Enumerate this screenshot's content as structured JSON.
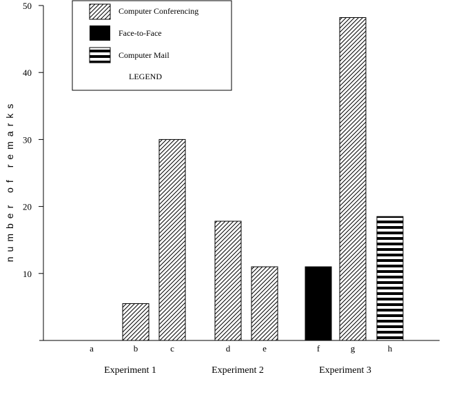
{
  "chart_data": {
    "type": "bar",
    "title": "",
    "xlabel": "",
    "ylabel": "number of remarks",
    "ylim": [
      0,
      50
    ],
    "yticks": [
      10,
      20,
      30,
      40,
      50
    ],
    "grid": false,
    "legend_position": "top-left",
    "legend_title": "LEGEND",
    "series": [
      {
        "name": "Computer Conferencing",
        "pattern": "diagonal-hatch",
        "color": "#000000"
      },
      {
        "name": "Face-to-Face",
        "pattern": "solid",
        "color": "#000000"
      },
      {
        "name": "Computer Mail",
        "pattern": "horizontal-stripes",
        "color": "#000000"
      }
    ],
    "bars": [
      {
        "label": "a",
        "group": "Experiment 1",
        "series": "Computer Conferencing",
        "value": 0
      },
      {
        "label": "b",
        "group": "Experiment 1",
        "series": "Computer Conferencing",
        "value": 5.5
      },
      {
        "label": "c",
        "group": "Experiment 1",
        "series": "Computer Conferencing",
        "value": 30
      },
      {
        "label": "d",
        "group": "Experiment 2",
        "series": "Computer Conferencing",
        "value": 17.8
      },
      {
        "label": "e",
        "group": "Experiment 2",
        "series": "Computer Conferencing",
        "value": 11
      },
      {
        "label": "f",
        "group": "Experiment 3",
        "series": "Face-to-Face",
        "value": 11
      },
      {
        "label": "g",
        "group": "Experiment 3",
        "series": "Computer Conferencing",
        "value": 48.2
      },
      {
        "label": "h",
        "group": "Experiment 3",
        "series": "Computer Mail",
        "value": 18.5
      }
    ],
    "groups": [
      "Experiment 1",
      "Experiment 2",
      "Experiment 3"
    ]
  }
}
